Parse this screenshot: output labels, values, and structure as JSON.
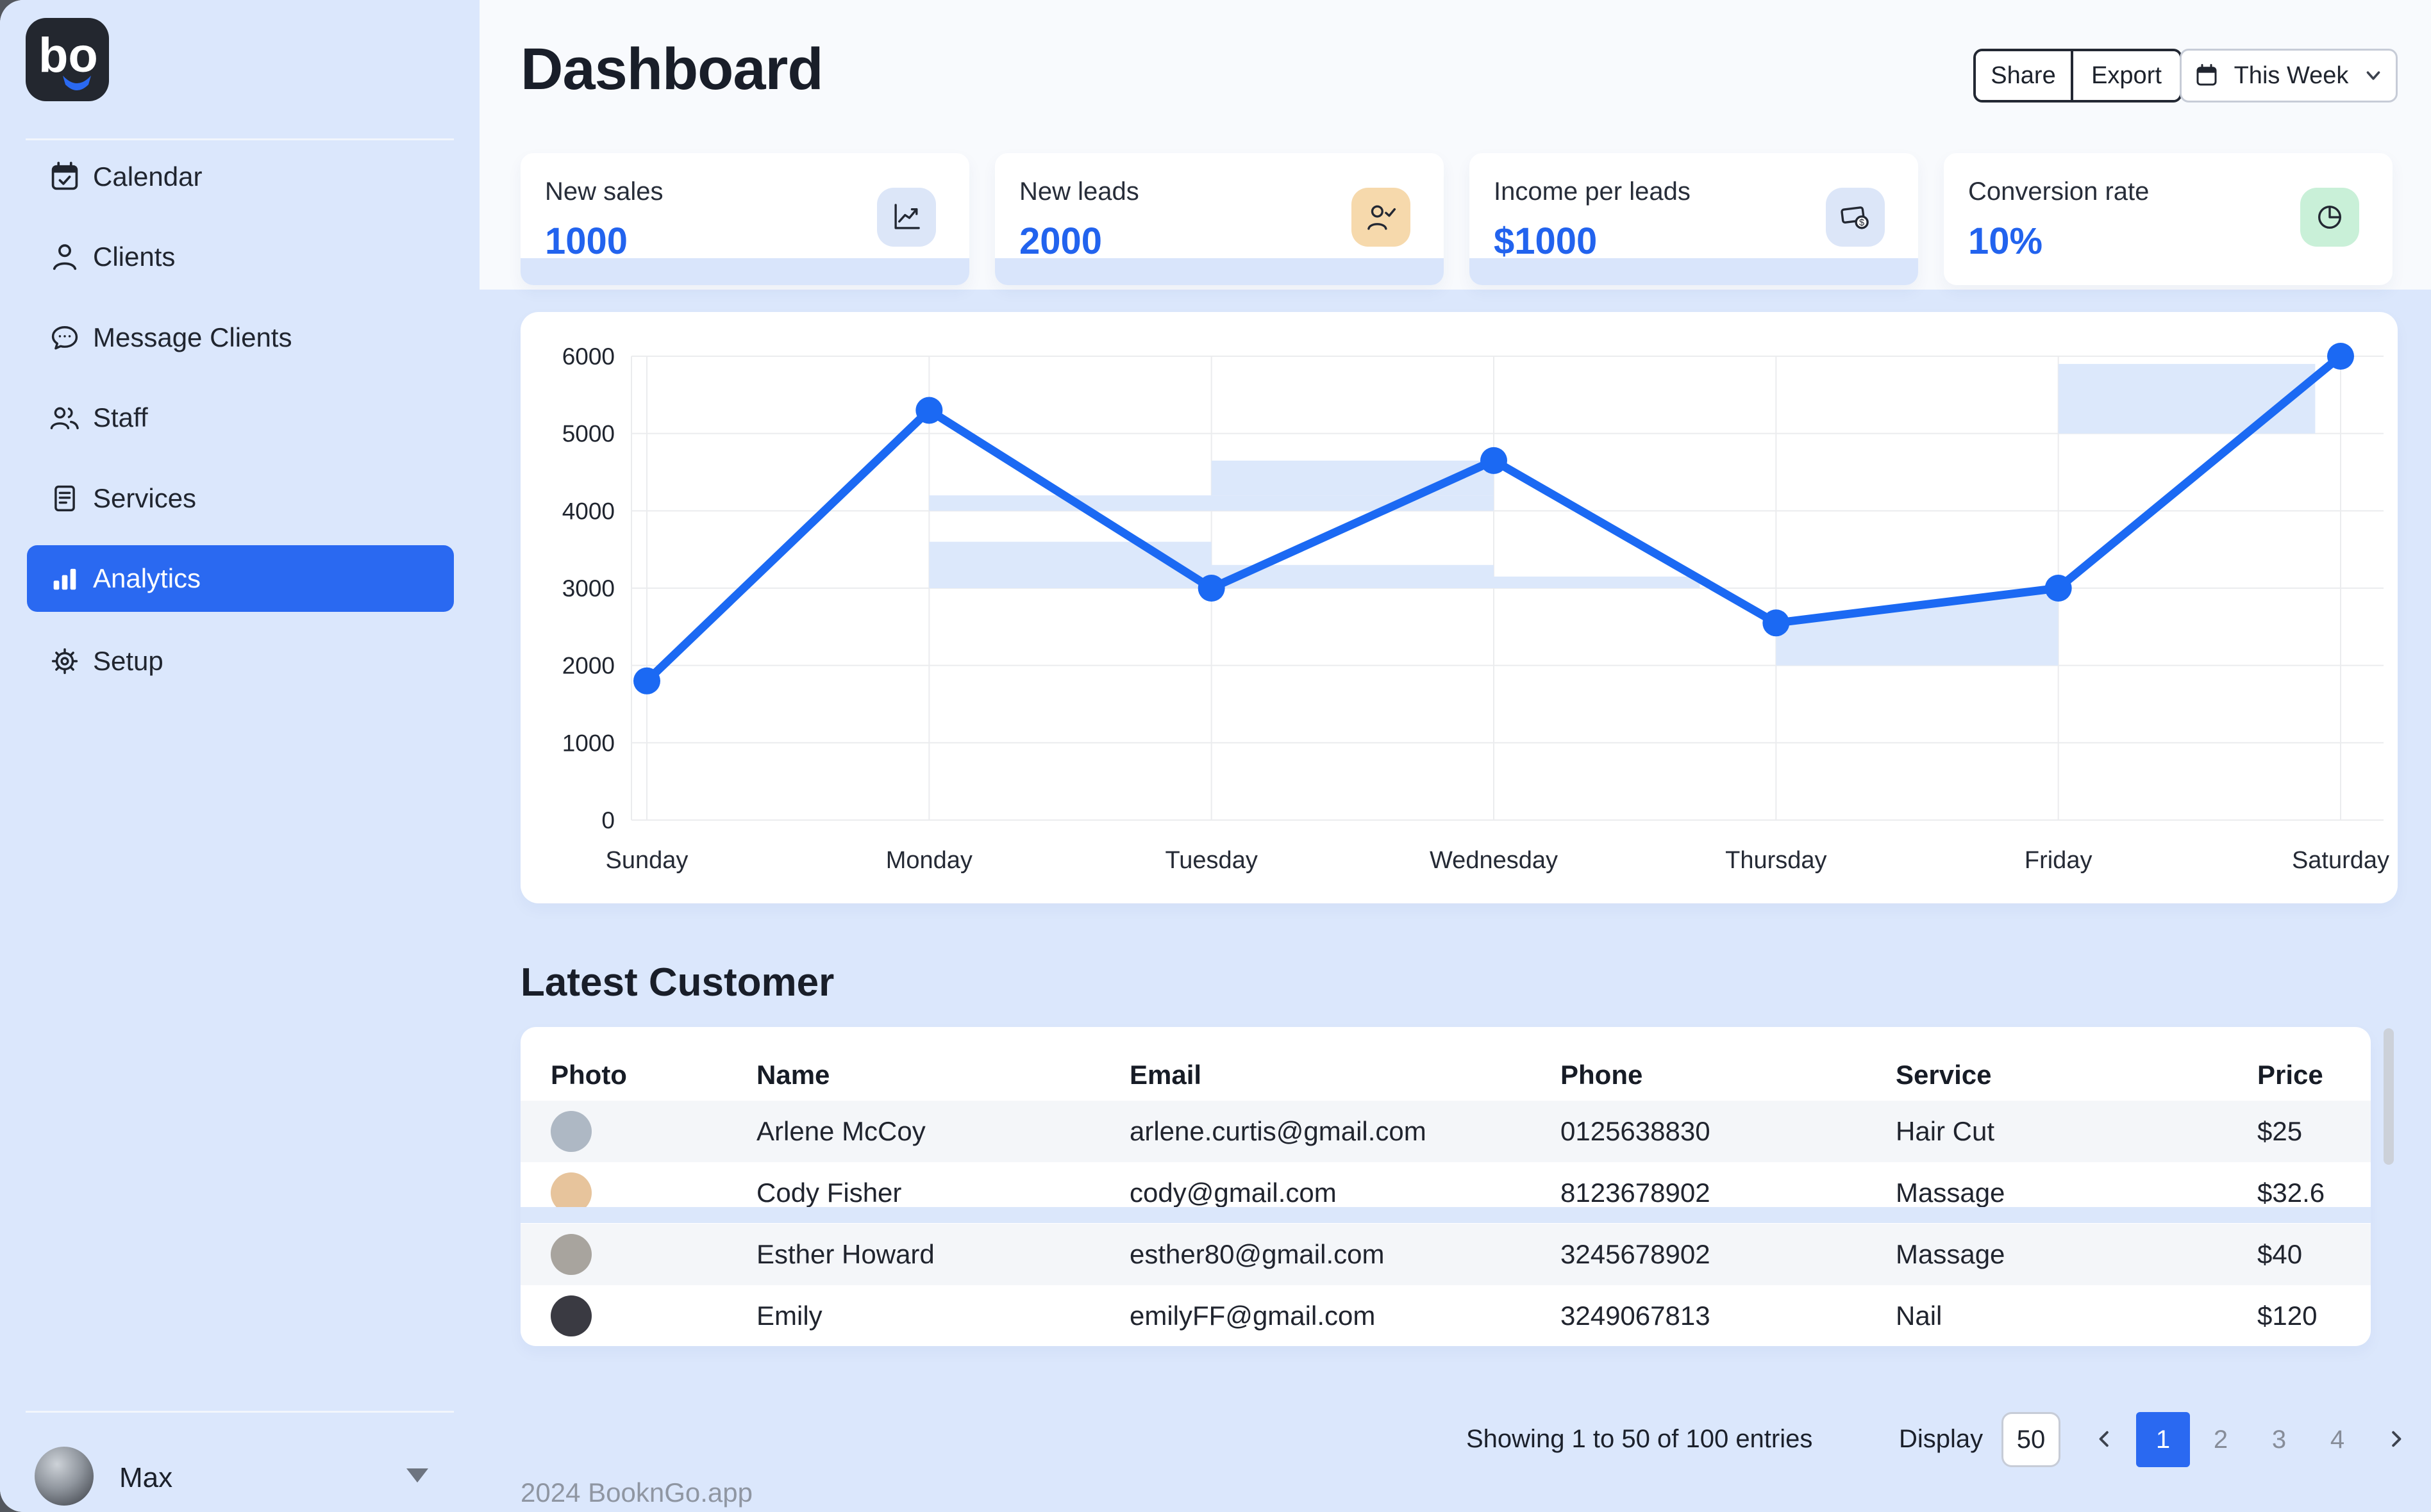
{
  "brand": {
    "logo_text": "bo"
  },
  "header": {
    "title": "Dashboard",
    "share_label": "Share",
    "export_label": "Export",
    "period_label": "This Week"
  },
  "sidebar": {
    "items": [
      {
        "label": "Calendar",
        "icon": "calendar-check-icon",
        "active": false
      },
      {
        "label": "Clients",
        "icon": "user-icon",
        "active": false
      },
      {
        "label": "Message Clients",
        "icon": "chat-bubble-icon",
        "active": false
      },
      {
        "label": "Staff",
        "icon": "users-icon",
        "active": false
      },
      {
        "label": "Services",
        "icon": "document-icon",
        "active": false
      },
      {
        "label": "Analytics",
        "icon": "bar-chart-icon",
        "active": true
      },
      {
        "label": "Setup",
        "icon": "gear-icon",
        "active": false
      }
    ],
    "user": {
      "name": "Max"
    }
  },
  "stats": [
    {
      "label": "New sales",
      "value": "1000",
      "icon": "trend-line-icon",
      "icon_bg": "#dce6f8",
      "footer_bar": true
    },
    {
      "label": "New leads",
      "value": "2000",
      "icon": "user-check-icon",
      "icon_bg": "#f6d9ac",
      "footer_bar": true
    },
    {
      "label": "Income per leads",
      "value": "$1000",
      "icon": "cash-icon",
      "icon_bg": "#dce6f8",
      "footer_bar": true
    },
    {
      "label": "Conversion rate",
      "value": "10%",
      "icon": "pie-chart-icon",
      "icon_bg": "#c9f0d8",
      "footer_bar": false
    }
  ],
  "chart_data": {
    "type": "line",
    "title": "",
    "categories": [
      "Sunday",
      "Monday",
      "Tuesday",
      "Wednesday",
      "Thursday",
      "Friday",
      "Saturday"
    ],
    "series": [
      {
        "name": "This Week",
        "values": [
          1800,
          5300,
          3000,
          4650,
          2550,
          3000,
          6000
        ]
      }
    ],
    "yticks": [
      0,
      1000,
      2000,
      3000,
      4000,
      5000,
      6000
    ],
    "ylim": [
      0,
      6000
    ],
    "grid": true,
    "legend": false,
    "line_color": "#1b69f3",
    "point_color": "#1b69f3",
    "band_color": "#dce8fb",
    "grid_color": "#ebecee",
    "bands": [
      {
        "type": "rect",
        "x0": 1,
        "x1": 3,
        "v0": 4000,
        "v1": 4200
      },
      {
        "type": "rect",
        "x0": 2,
        "x1": 3,
        "v0": 4200,
        "v1": 4650
      },
      {
        "type": "rect",
        "x0": 1,
        "x1": 2,
        "v0": 3000,
        "v1": 3600
      },
      {
        "type": "rect",
        "x0": 2,
        "x1": 3,
        "v0": 3000,
        "v1": 3300
      },
      {
        "type": "rect",
        "x0": 3,
        "x1": 3.73,
        "v0": 3000,
        "v1": 3150
      },
      {
        "type": "under_line",
        "x0": 4,
        "x1": 5,
        "v0": 2000
      },
      {
        "type": "rect",
        "x0": 5,
        "x1": 5.91,
        "v0": 5000,
        "v1": 5900
      }
    ]
  },
  "table": {
    "title": "Latest Customer",
    "columns": [
      "Photo",
      "Name",
      "Email",
      "Phone",
      "Service",
      "Price"
    ],
    "rows": [
      {
        "name": "Arlene McCoy",
        "email": "arlene.curtis@gmail.com",
        "phone": "0125638830",
        "service": "Hair Cut",
        "price": "$25",
        "avatar_tone": "#aeb8c4"
      },
      {
        "name": "Cody Fisher",
        "email": "cody@gmail.com",
        "phone": "8123678902",
        "service": "Massage",
        "price": "$32.6",
        "avatar_tone": "#e7c49c"
      },
      {
        "name": "Esther Howard",
        "email": "esther80@gmail.com",
        "phone": "3245678902",
        "service": "Massage",
        "price": "$40",
        "avatar_tone": "#a8a49e"
      },
      {
        "name": "Emily",
        "email": "emilyFF@gmail.com",
        "phone": "3249067813",
        "service": "Nail",
        "price": "$120",
        "avatar_tone": "#3a3a42"
      }
    ]
  },
  "pagination": {
    "summary": "Showing 1 to 50 of 100 entries",
    "display_label": "Display",
    "page_size": "50",
    "pages": [
      "1",
      "2",
      "3",
      "4"
    ],
    "active_page": "1"
  },
  "footer": {
    "text": "2024 BooknGo.app"
  },
  "colors": {
    "accent": "#2a69f1",
    "sidebar_bg": "#dbe7fc",
    "content_bg": "#dbe7fc",
    "header_bg": "#f8fafd",
    "card_strip": "#d9e5fb",
    "row_alt": "#f4f6f9",
    "row_band": "#dbe7fb"
  }
}
